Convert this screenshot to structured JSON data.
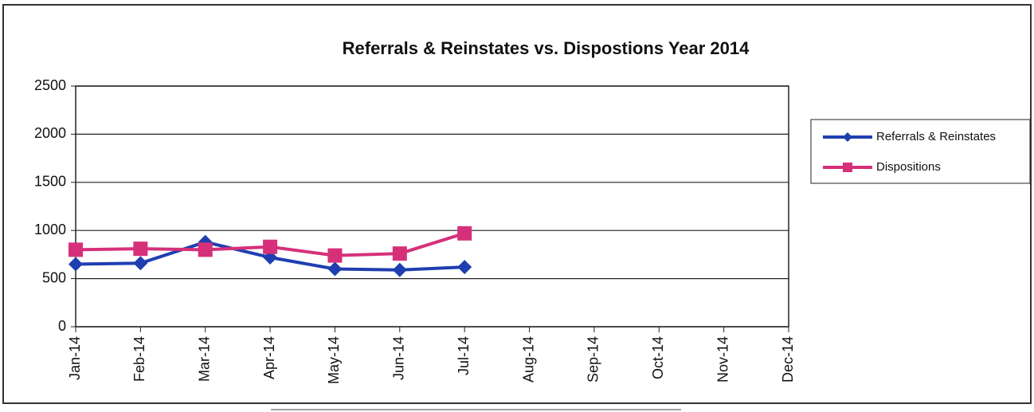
{
  "chart_data": {
    "type": "line",
    "title": "Referrals & Reinstates vs. Dispostions  Year 2014",
    "categories": [
      "Jan-14",
      "Feb-14",
      "Mar-14",
      "Apr-14",
      "May-14",
      "Jun-14",
      "Jul-14",
      "Aug-14",
      "Sep-14",
      "Oct-14",
      "Nov-14",
      "Dec-14"
    ],
    "series": [
      {
        "name": "Referrals & Reinstates",
        "color": "#1f3fb0",
        "marker": "diamond",
        "values": [
          650,
          660,
          880,
          720,
          600,
          590,
          620,
          null,
          null,
          null,
          null,
          null
        ]
      },
      {
        "name": "Dispositions",
        "color": "#d6307a",
        "marker": "square",
        "values": [
          800,
          810,
          800,
          830,
          740,
          760,
          970,
          null,
          null,
          null,
          null,
          null
        ]
      }
    ],
    "ylim": [
      0,
      2500
    ],
    "yticks": [
      0,
      500,
      1000,
      1500,
      2000,
      2500
    ],
    "grid": true,
    "legend": "right"
  }
}
